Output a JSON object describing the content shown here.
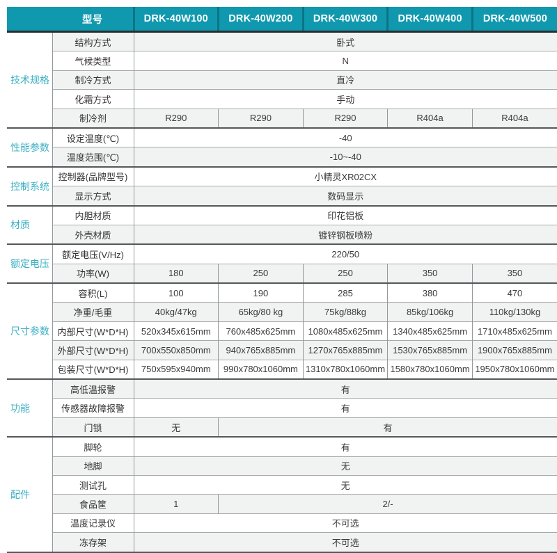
{
  "theme": {
    "header_bg": "#1099ae",
    "header_divider": "#0b7487",
    "header_text": "#ffffff",
    "category_text": "#3cb0c5",
    "stripe_bg": "#f1f2f2",
    "row_line": "#a6aaac",
    "section_line": "#54585a",
    "body_text": "#3a3a3a"
  },
  "table": {
    "header": {
      "model_label": "型号",
      "models": [
        "DRK-40W100",
        "DRK-40W200",
        "DRK-40W300",
        "DRK-40W400",
        "DRK-40W500"
      ]
    },
    "sections": [
      {
        "category": "技术规格",
        "rows": [
          {
            "label": "结构方式",
            "cells": [
              {
                "span": 5,
                "text": "卧式"
              }
            ]
          },
          {
            "label": "气候类型",
            "cells": [
              {
                "span": 5,
                "text": "N"
              }
            ]
          },
          {
            "label": "制冷方式",
            "cells": [
              {
                "span": 5,
                "text": "直冷"
              }
            ]
          },
          {
            "label": "化霜方式",
            "cells": [
              {
                "span": 5,
                "text": "手动"
              }
            ]
          },
          {
            "label": "制冷剂",
            "cells": [
              {
                "span": 1,
                "text": "R290"
              },
              {
                "span": 1,
                "text": "R290"
              },
              {
                "span": 1,
                "text": "R290"
              },
              {
                "span": 1,
                "text": "R404a"
              },
              {
                "span": 1,
                "text": "R404a"
              }
            ]
          }
        ]
      },
      {
        "category": "性能参数",
        "rows": [
          {
            "label": "设定温度(℃)",
            "cells": [
              {
                "span": 5,
                "text": "-40"
              }
            ]
          },
          {
            "label": "温度范围(℃)",
            "cells": [
              {
                "span": 5,
                "text": "-10~-40"
              }
            ]
          }
        ]
      },
      {
        "category": "控制系统",
        "rows": [
          {
            "label": "控制器(品牌型号)",
            "cells": [
              {
                "span": 5,
                "text": "小精灵XR02CX"
              }
            ]
          },
          {
            "label": "显示方式",
            "cells": [
              {
                "span": 5,
                "text": "数码显示"
              }
            ]
          }
        ]
      },
      {
        "category": "材质",
        "rows": [
          {
            "label": "内胆材质",
            "cells": [
              {
                "span": 5,
                "text": "印花铝板"
              }
            ]
          },
          {
            "label": "外壳材质",
            "cells": [
              {
                "span": 5,
                "text": "镀锌钢板喷粉"
              }
            ]
          }
        ]
      },
      {
        "category": "额定电压",
        "rows": [
          {
            "label": "额定电压(V/Hz)",
            "cells": [
              {
                "span": 5,
                "text": "220/50"
              }
            ]
          },
          {
            "label": "功率(W)",
            "cells": [
              {
                "span": 1,
                "text": "180"
              },
              {
                "span": 1,
                "text": "250"
              },
              {
                "span": 1,
                "text": "250"
              },
              {
                "span": 1,
                "text": "350"
              },
              {
                "span": 1,
                "text": "350"
              }
            ]
          }
        ]
      },
      {
        "category": "尺寸参数",
        "rows": [
          {
            "label": "容积(L)",
            "cells": [
              {
                "span": 1,
                "text": "100"
              },
              {
                "span": 1,
                "text": "190"
              },
              {
                "span": 1,
                "text": "285"
              },
              {
                "span": 1,
                "text": "380"
              },
              {
                "span": 1,
                "text": "470"
              }
            ]
          },
          {
            "label": "净重/毛重",
            "cells": [
              {
                "span": 1,
                "text": "40kg/47kg"
              },
              {
                "span": 1,
                "text": "65kg/80 kg"
              },
              {
                "span": 1,
                "text": "75kg/88kg"
              },
              {
                "span": 1,
                "text": "85kg/106kg"
              },
              {
                "span": 1,
                "text": "110kg/130kg"
              }
            ]
          },
          {
            "label": "内部尺寸(W*D*H)",
            "cells": [
              {
                "span": 1,
                "text": "520x345x615mm"
              },
              {
                "span": 1,
                "text": "760x485x625mm"
              },
              {
                "span": 1,
                "text": "1080x485x625mm"
              },
              {
                "span": 1,
                "text": "1340x485x625mm"
              },
              {
                "span": 1,
                "text": "1710x485x625mm"
              }
            ]
          },
          {
            "label": "外部尺寸(W*D*H)",
            "cells": [
              {
                "span": 1,
                "text": "700x550x850mm"
              },
              {
                "span": 1,
                "text": "940x765x885mm"
              },
              {
                "span": 1,
                "text": "1270x765x885mm"
              },
              {
                "span": 1,
                "text": "1530x765x885mm"
              },
              {
                "span": 1,
                "text": "1900x765x885mm"
              }
            ]
          },
          {
            "label": "包装尺寸(W*D*H)",
            "cells": [
              {
                "span": 1,
                "text": "750x595x940mm"
              },
              {
                "span": 1,
                "text": "990x780x1060mm"
              },
              {
                "span": 1,
                "text": "1310x780x1060mm"
              },
              {
                "span": 1,
                "text": "1580x780x1060mm"
              },
              {
                "span": 1,
                "text": "1950x780x1060mm"
              }
            ]
          }
        ]
      },
      {
        "category": "功能",
        "rows": [
          {
            "label": "高低温报警",
            "cells": [
              {
                "span": 5,
                "text": "有"
              }
            ]
          },
          {
            "label": "传感器故障报警",
            "cells": [
              {
                "span": 5,
                "text": "有"
              }
            ]
          },
          {
            "label": "门锁",
            "cells": [
              {
                "span": 1,
                "text": "无"
              },
              {
                "span": 4,
                "text": "有"
              }
            ]
          }
        ]
      },
      {
        "category": "配件",
        "rows": [
          {
            "label": "脚轮",
            "cells": [
              {
                "span": 5,
                "text": "有"
              }
            ]
          },
          {
            "label": "地脚",
            "cells": [
              {
                "span": 5,
                "text": "无"
              }
            ]
          },
          {
            "label": "测试孔",
            "cells": [
              {
                "span": 5,
                "text": "无"
              }
            ]
          },
          {
            "label": "食品筐",
            "cells": [
              {
                "span": 1,
                "text": "1"
              },
              {
                "span": 4,
                "text": "2/-"
              }
            ]
          },
          {
            "label": "温度记录仪",
            "cells": [
              {
                "span": 5,
                "text": "不可选"
              }
            ]
          },
          {
            "label": "冻存架",
            "cells": [
              {
                "span": 5,
                "text": "不可选"
              }
            ]
          }
        ]
      }
    ]
  }
}
